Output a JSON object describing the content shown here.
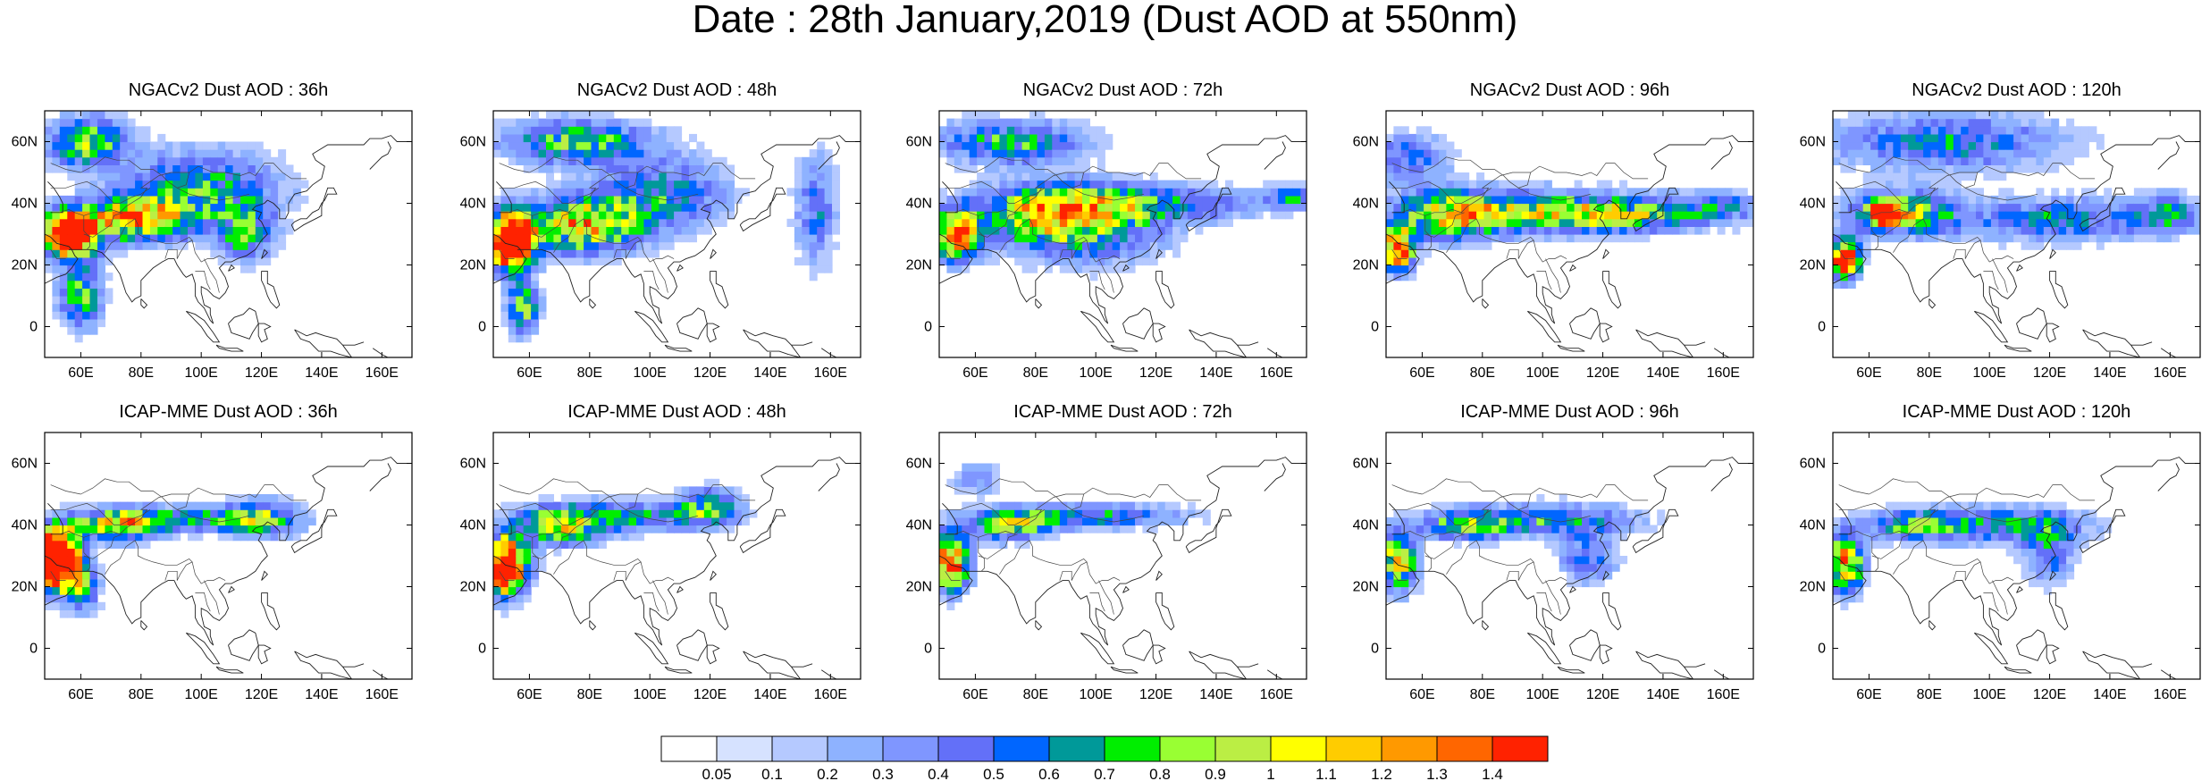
{
  "title": "Date : 28th January,2019 (Dust AOD at 550nm)",
  "chart_data": {
    "type": "heatmap",
    "panels": [
      {
        "row": 0,
        "col": 0,
        "title": "NGACv2 Dust AOD : 36h"
      },
      {
        "row": 0,
        "col": 1,
        "title": "NGACv2 Dust AOD : 48h"
      },
      {
        "row": 0,
        "col": 2,
        "title": "NGACv2 Dust AOD : 72h"
      },
      {
        "row": 0,
        "col": 3,
        "title": "NGACv2 Dust AOD : 96h"
      },
      {
        "row": 0,
        "col": 4,
        "title": "NGACv2 Dust AOD : 120h"
      },
      {
        "row": 1,
        "col": 0,
        "title": "ICAP-MME Dust AOD : 36h"
      },
      {
        "row": 1,
        "col": 1,
        "title": "ICAP-MME Dust AOD : 48h"
      },
      {
        "row": 1,
        "col": 2,
        "title": "ICAP-MME Dust AOD : 72h"
      },
      {
        "row": 1,
        "col": 3,
        "title": "ICAP-MME Dust AOD : 96h"
      },
      {
        "row": 1,
        "col": 4,
        "title": "ICAP-MME Dust AOD : 120h"
      }
    ],
    "lon_range": [
      48,
      170
    ],
    "lat_range": [
      -10,
      70
    ],
    "x_ticks": [
      60,
      80,
      100,
      120,
      140,
      160
    ],
    "x_tick_labels": [
      "60E",
      "80E",
      "100E",
      "120E",
      "140E",
      "160E"
    ],
    "y_ticks": [
      0,
      20,
      40,
      60
    ],
    "y_tick_labels": [
      "0",
      "20N",
      "40N",
      "60N"
    ],
    "colorbar": {
      "labels": [
        "0.05",
        "0.1",
        "0.2",
        "0.3",
        "0.4",
        "0.5",
        "0.6",
        "0.7",
        "0.8",
        "0.9",
        "1",
        "1.1",
        "1.2",
        "1.3",
        "1.4"
      ],
      "colors": [
        "#ffffff",
        "#d6e2ff",
        "#b5c9ff",
        "#8eb2ff",
        "#7f96ff",
        "#6370f8",
        "#0066ff",
        "#009999",
        "#00ee00",
        "#99ff33",
        "#bbee44",
        "#ffff00",
        "#ffcc00",
        "#ff9900",
        "#ff6600",
        "#ff2200"
      ]
    }
  }
}
